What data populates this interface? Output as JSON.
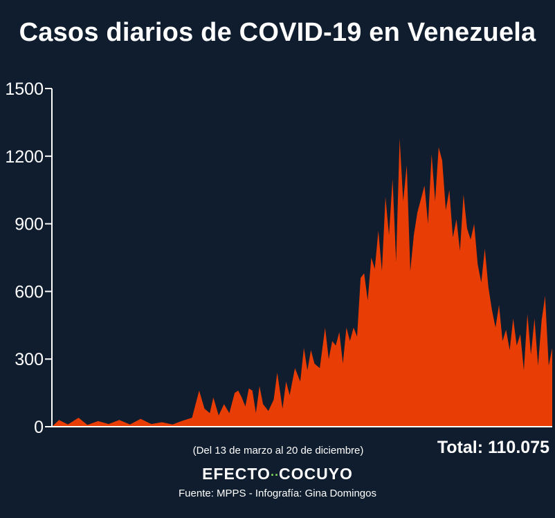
{
  "title": "Casos diarios de COVID-19 en Venezuela",
  "range_note": "(Del 13 de marzo al 20 de diciembre)",
  "total": "Total: 110.075",
  "brand": {
    "left": "EFECTO",
    "dots": "··",
    "right": "COCUYO"
  },
  "source": "Fuente: MPPS - Infografía: Gina Domingos",
  "colors": {
    "background": "#0f1d2e",
    "area": "#e83d04",
    "axis": "#ffffff"
  },
  "chart_data": {
    "type": "area",
    "title": "Casos diarios de COVID-19 en Venezuela",
    "xlabel": "",
    "ylabel": "",
    "ylim": [
      0,
      1500
    ],
    "yticks": [
      "0",
      "300",
      "600",
      "900",
      "1200",
      "1500"
    ],
    "grid": false,
    "series": [
      {
        "name": "",
        "color": "#e83d04",
        "start": "2020-03-13",
        "end": "2020-12-20",
        "points": [
          [
            "2020-03-13",
            0
          ],
          [
            "2020-03-17",
            30
          ],
          [
            "2020-03-22",
            10
          ],
          [
            "2020-03-28",
            40
          ],
          [
            "2020-04-02",
            8
          ],
          [
            "2020-04-08",
            25
          ],
          [
            "2020-04-14",
            12
          ],
          [
            "2020-04-20",
            30
          ],
          [
            "2020-04-26",
            10
          ],
          [
            "2020-05-02",
            35
          ],
          [
            "2020-05-08",
            12
          ],
          [
            "2020-05-14",
            20
          ],
          [
            "2020-05-20",
            10
          ],
          [
            "2020-05-25",
            25
          ],
          [
            "2020-05-31",
            40
          ],
          [
            "2020-06-04",
            160
          ],
          [
            "2020-06-07",
            80
          ],
          [
            "2020-06-10",
            60
          ],
          [
            "2020-06-12",
            130
          ],
          [
            "2020-06-15",
            50
          ],
          [
            "2020-06-18",
            100
          ],
          [
            "2020-06-21",
            60
          ],
          [
            "2020-06-24",
            150
          ],
          [
            "2020-06-26",
            160
          ],
          [
            "2020-06-28",
            130
          ],
          [
            "2020-06-30",
            90
          ],
          [
            "2020-07-02",
            170
          ],
          [
            "2020-07-04",
            160
          ],
          [
            "2020-07-06",
            60
          ],
          [
            "2020-07-08",
            180
          ],
          [
            "2020-07-10",
            100
          ],
          [
            "2020-07-13",
            70
          ],
          [
            "2020-07-16",
            120
          ],
          [
            "2020-07-18",
            240
          ],
          [
            "2020-07-21",
            80
          ],
          [
            "2020-07-23",
            200
          ],
          [
            "2020-07-25",
            140
          ],
          [
            "2020-07-28",
            260
          ],
          [
            "2020-07-31",
            200
          ],
          [
            "2020-08-02",
            350
          ],
          [
            "2020-08-04",
            250
          ],
          [
            "2020-08-06",
            340
          ],
          [
            "2020-08-08",
            280
          ],
          [
            "2020-08-11",
            260
          ],
          [
            "2020-08-14",
            440
          ],
          [
            "2020-08-16",
            300
          ],
          [
            "2020-08-18",
            380
          ],
          [
            "2020-08-20",
            360
          ],
          [
            "2020-08-22",
            420
          ],
          [
            "2020-08-24",
            280
          ],
          [
            "2020-08-26",
            440
          ],
          [
            "2020-08-28",
            380
          ],
          [
            "2020-08-30",
            440
          ],
          [
            "2020-09-01",
            400
          ],
          [
            "2020-09-03",
            660
          ],
          [
            "2020-09-05",
            680
          ],
          [
            "2020-09-07",
            560
          ],
          [
            "2020-09-09",
            750
          ],
          [
            "2020-09-11",
            700
          ],
          [
            "2020-09-13",
            870
          ],
          [
            "2020-09-15",
            690
          ],
          [
            "2020-09-17",
            1020
          ],
          [
            "2020-09-19",
            850
          ],
          [
            "2020-09-21",
            1100
          ],
          [
            "2020-09-23",
            730
          ],
          [
            "2020-09-25",
            1280
          ],
          [
            "2020-09-27",
            1000
          ],
          [
            "2020-09-29",
            1160
          ],
          [
            "2020-10-01",
            690
          ],
          [
            "2020-10-03",
            850
          ],
          [
            "2020-10-05",
            950
          ],
          [
            "2020-10-07",
            1010
          ],
          [
            "2020-10-09",
            1070
          ],
          [
            "2020-10-11",
            900
          ],
          [
            "2020-10-13",
            1210
          ],
          [
            "2020-10-15",
            1000
          ],
          [
            "2020-10-17",
            1240
          ],
          [
            "2020-10-19",
            1180
          ],
          [
            "2020-10-21",
            960
          ],
          [
            "2020-10-23",
            1050
          ],
          [
            "2020-10-25",
            840
          ],
          [
            "2020-10-27",
            920
          ],
          [
            "2020-10-29",
            780
          ],
          [
            "2020-10-31",
            1030
          ],
          [
            "2020-11-02",
            880
          ],
          [
            "2020-11-04",
            830
          ],
          [
            "2020-11-06",
            900
          ],
          [
            "2020-11-08",
            720
          ],
          [
            "2020-11-10",
            640
          ],
          [
            "2020-11-12",
            790
          ],
          [
            "2020-11-14",
            620
          ],
          [
            "2020-11-16",
            520
          ],
          [
            "2020-11-18",
            440
          ],
          [
            "2020-11-20",
            540
          ],
          [
            "2020-11-22",
            380
          ],
          [
            "2020-11-24",
            430
          ],
          [
            "2020-11-26",
            340
          ],
          [
            "2020-11-28",
            480
          ],
          [
            "2020-11-30",
            360
          ],
          [
            "2020-12-02",
            410
          ],
          [
            "2020-12-04",
            250
          ],
          [
            "2020-12-06",
            500
          ],
          [
            "2020-12-08",
            320
          ],
          [
            "2020-12-10",
            480
          ],
          [
            "2020-12-12",
            270
          ],
          [
            "2020-12-14",
            470
          ],
          [
            "2020-12-16",
            580
          ],
          [
            "2020-12-18",
            270
          ],
          [
            "2020-12-20",
            350
          ]
        ]
      }
    ]
  }
}
